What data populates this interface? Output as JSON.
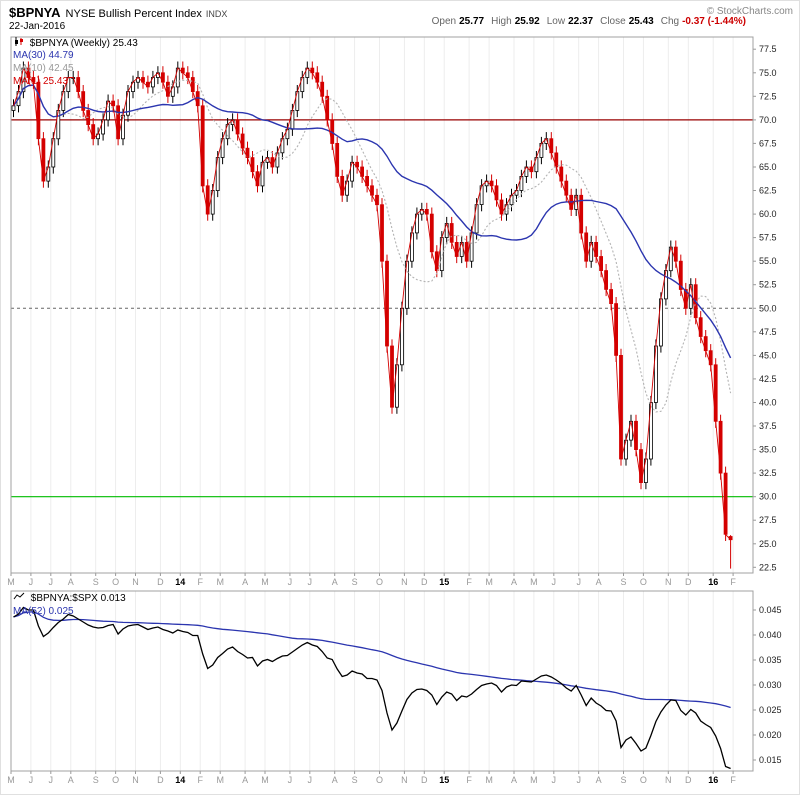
{
  "header": {
    "symbol": "$BPNYA",
    "name": "NYSE Bullish Percent Index",
    "exchange": "INDX",
    "date": "22-Jan-2016",
    "copyright": "© StockCharts.com"
  },
  "quote": {
    "open_label": "Open",
    "open_value": "25.77",
    "high_label": "High",
    "high_value": "25.92",
    "low_label": "Low",
    "low_value": "22.37",
    "close_label": "Close",
    "close_value": "25.43",
    "chg_label": "Chg",
    "chg_value": "-0.37 (-1.44%)",
    "chg_color": "#cc0000"
  },
  "chart_data": [
    {
      "type": "candlestick",
      "title": "$BPNYA (Weekly)",
      "legend": [
        {
          "label": "$BPNYA (Weekly) 25.43",
          "color": "#000000"
        },
        {
          "label": "MA(30) 44.79",
          "color": "#2b35af"
        },
        {
          "label": "MA(10) 42.45",
          "color": "#999999"
        },
        {
          "label": "MA(1) 25.43",
          "color": "#d40000"
        }
      ],
      "months": [
        {
          "label": "M",
          "weeks": 4
        },
        {
          "label": "J",
          "weeks": 4
        },
        {
          "label": "J",
          "weeks": 4
        },
        {
          "label": "A",
          "weeks": 5
        },
        {
          "label": "S",
          "weeks": 4
        },
        {
          "label": "O",
          "weeks": 4
        },
        {
          "label": "N",
          "weeks": 5
        },
        {
          "label": "D",
          "weeks": 4
        },
        {
          "label": "14",
          "weeks": 4,
          "year": true
        },
        {
          "label": "F",
          "weeks": 4
        },
        {
          "label": "M",
          "weeks": 5
        },
        {
          "label": "A",
          "weeks": 4
        },
        {
          "label": "M",
          "weeks": 5
        },
        {
          "label": "J",
          "weeks": 4
        },
        {
          "label": "J",
          "weeks": 5
        },
        {
          "label": "A",
          "weeks": 4
        },
        {
          "label": "S",
          "weeks": 5
        },
        {
          "label": "O",
          "weeks": 5
        },
        {
          "label": "N",
          "weeks": 4
        },
        {
          "label": "D",
          "weeks": 4
        },
        {
          "label": "15",
          "weeks": 5,
          "year": true
        },
        {
          "label": "F",
          "weeks": 4
        },
        {
          "label": "M",
          "weeks": 5
        },
        {
          "label": "A",
          "weeks": 4
        },
        {
          "label": "M",
          "weeks": 4
        },
        {
          "label": "J",
          "weeks": 5
        },
        {
          "label": "J",
          "weeks": 4
        },
        {
          "label": "A",
          "weeks": 5
        },
        {
          "label": "S",
          "weeks": 4
        },
        {
          "label": "O",
          "weeks": 5
        },
        {
          "label": "N",
          "weeks": 4
        },
        {
          "label": "D",
          "weeks": 5
        },
        {
          "label": "16",
          "weeks": 4,
          "year": true
        },
        {
          "label": "F",
          "weeks": 4
        }
      ],
      "closes": [
        71.5,
        73,
        75.5,
        74.5,
        74,
        68,
        63.5,
        65,
        68,
        71,
        73,
        74.5,
        74.5,
        73,
        71,
        69.5,
        68,
        68.5,
        70,
        72,
        71.5,
        68,
        70.5,
        73,
        74,
        74.5,
        74,
        73.5,
        74.5,
        75,
        74,
        72.5,
        73.5,
        75.5,
        75,
        74.5,
        73,
        71.5,
        63,
        60,
        62.5,
        66,
        68,
        69.5,
        70,
        68.5,
        67,
        66,
        64.5,
        63,
        65.5,
        66,
        65,
        66.5,
        68,
        69,
        71,
        73,
        74.5,
        75.5,
        75,
        74,
        72.5,
        70,
        67.5,
        64,
        62,
        63.5,
        65.5,
        65,
        64,
        63,
        62,
        61,
        55,
        46,
        39.5,
        44,
        50,
        55,
        58,
        60,
        60.5,
        60,
        56,
        54,
        57.5,
        59,
        57,
        55.5,
        57,
        55,
        58,
        61,
        63,
        63.5,
        63,
        61.5,
        60,
        61,
        62,
        62.5,
        64,
        65,
        64.5,
        66,
        67.5,
        68,
        66.5,
        65,
        63.5,
        62,
        60.5,
        62,
        58,
        55,
        57,
        55.5,
        54,
        52,
        50.5,
        45,
        34,
        36,
        38,
        35,
        31.5,
        34,
        40,
        46,
        51,
        54,
        56.5,
        55,
        52,
        50,
        52.5,
        49,
        47,
        45.5,
        44,
        38,
        32.5,
        26,
        25.43
      ],
      "last_ohlc": {
        "open": 25.77,
        "high": 25.92,
        "low": 22.37,
        "close": 25.43
      },
      "overlays": [
        {
          "name": "MA(30)",
          "period": 30,
          "value": 44.79,
          "color": "#2b35af",
          "style": "solid"
        },
        {
          "name": "MA(10)",
          "period": 10,
          "value": 42.45,
          "color": "#b3b3b3",
          "style": "dashed"
        },
        {
          "name": "MA(1)",
          "period": 1,
          "value": 25.43,
          "color": "#d40000",
          "style": "solid"
        }
      ],
      "hlines": [
        {
          "value": 70,
          "color": "#990000",
          "style": "solid"
        },
        {
          "value": 50,
          "color": "#666666",
          "style": "dashed"
        },
        {
          "value": 30,
          "color": "#00bb00",
          "style": "solid"
        }
      ],
      "ylim": [
        21.9,
        78.8
      ],
      "yticks": {
        "min": 22.5,
        "max": 77.5,
        "step": 2.5,
        "decimals": 1
      },
      "grid": "vertical-month-lines",
      "legend_position": "top-left"
    },
    {
      "type": "line",
      "title": "$BPNYA:$SPX",
      "legend": [
        {
          "label": "$BPNYA:$SPX 0.013",
          "color": "#000000"
        },
        {
          "label": "MA(52) 0.025",
          "color": "#2b35af"
        }
      ],
      "values": [
        0.0436,
        0.0442,
        0.0455,
        0.045,
        0.045,
        0.0418,
        0.0397,
        0.0404,
        0.0415,
        0.0425,
        0.0432,
        0.0441,
        0.0438,
        0.0432,
        0.0426,
        0.042,
        0.0416,
        0.0414,
        0.0415,
        0.0419,
        0.0421,
        0.0402,
        0.0412,
        0.0418,
        0.042,
        0.0421,
        0.0416,
        0.0411,
        0.0414,
        0.0416,
        0.0411,
        0.0408,
        0.0404,
        0.041,
        0.0407,
        0.0405,
        0.0399,
        0.0399,
        0.0362,
        0.0333,
        0.034,
        0.0355,
        0.0363,
        0.0372,
        0.0376,
        0.0367,
        0.0361,
        0.0354,
        0.0355,
        0.0338,
        0.0348,
        0.0351,
        0.0347,
        0.0353,
        0.0358,
        0.0359,
        0.0366,
        0.0373,
        0.038,
        0.0385,
        0.038,
        0.0377,
        0.0367,
        0.0354,
        0.0351,
        0.0332,
        0.0317,
        0.032,
        0.0328,
        0.0324,
        0.0322,
        0.0313,
        0.0313,
        0.031,
        0.0289,
        0.0244,
        0.021,
        0.0224,
        0.0248,
        0.0271,
        0.0284,
        0.0291,
        0.0292,
        0.0289,
        0.028,
        0.0261,
        0.0276,
        0.0286,
        0.0282,
        0.0269,
        0.0278,
        0.0276,
        0.0282,
        0.0291,
        0.0299,
        0.0302,
        0.0304,
        0.0299,
        0.0286,
        0.0296,
        0.03,
        0.0299,
        0.0308,
        0.0307,
        0.0306,
        0.0312,
        0.0318,
        0.032,
        0.0316,
        0.031,
        0.0303,
        0.0294,
        0.0288,
        0.0299,
        0.028,
        0.0259,
        0.0274,
        0.0264,
        0.0258,
        0.0249,
        0.0248,
        0.0228,
        0.0175,
        0.019,
        0.0196,
        0.0183,
        0.0168,
        0.0174,
        0.0199,
        0.0227,
        0.0246,
        0.026,
        0.027,
        0.0269,
        0.0249,
        0.024,
        0.0251,
        0.0244,
        0.0228,
        0.0221,
        0.0215,
        0.0198,
        0.0173,
        0.0137,
        0.0133
      ],
      "overlays": [
        {
          "name": "MA(52)",
          "period": 52,
          "value": 0.025,
          "color": "#2b35af",
          "style": "solid"
        }
      ],
      "ylim": [
        0.0128,
        0.0488
      ],
      "yticks": {
        "min": 0.015,
        "max": 0.045,
        "step": 0.005,
        "decimals": 3
      },
      "grid": "vertical-month-lines",
      "legend_position": "top-left"
    }
  ]
}
